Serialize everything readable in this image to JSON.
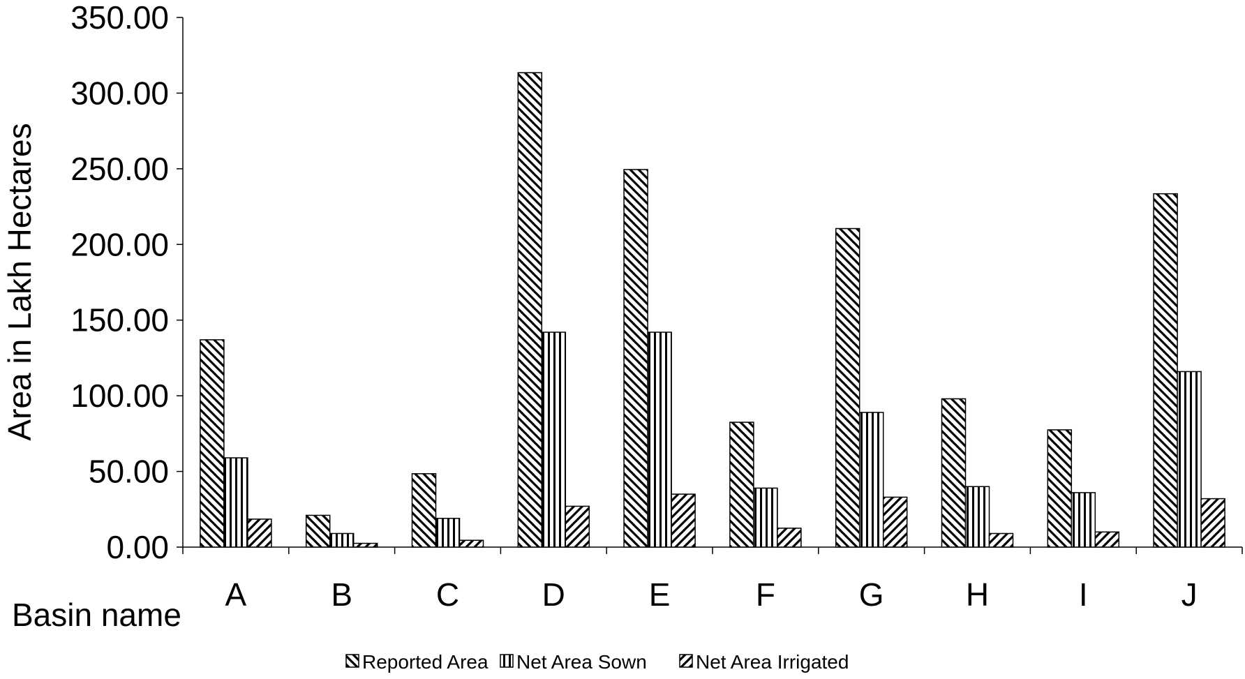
{
  "chart_data": {
    "type": "bar",
    "title": "",
    "xlabel": "Basin name",
    "ylabel": "Area in Lakh Hectares",
    "categories": [
      "A",
      "B",
      "C",
      "D",
      "E",
      "F",
      "G",
      "H",
      "I",
      "J"
    ],
    "series": [
      {
        "name": "Reported Area",
        "pattern": "back-diagonal",
        "values": [
          137.0,
          21.0,
          48.5,
          313.5,
          249.5,
          82.5,
          210.5,
          98.0,
          77.5,
          233.5
        ]
      },
      {
        "name": "Net Area Sown",
        "pattern": "vertical",
        "values": [
          59.0,
          9.0,
          19.0,
          142.0,
          142.0,
          39.0,
          89.0,
          40.0,
          36.0,
          116.0
        ]
      },
      {
        "name": "Net Area Irrigated",
        "pattern": "forward-diagonal",
        "values": [
          18.5,
          2.5,
          4.5,
          27.0,
          35.0,
          12.5,
          33.0,
          9.0,
          10.0,
          32.0
        ]
      }
    ],
    "yticks": [
      "0.00",
      "50.00",
      "100.00",
      "150.00",
      "200.00",
      "250.00",
      "300.00",
      "350.00"
    ],
    "ylim": [
      0,
      350
    ],
    "grid": false,
    "legend": "bottom",
    "colors": {
      "bar_fill": "#ffffff",
      "bar_stroke": "#000000",
      "axis": "#000000"
    }
  }
}
